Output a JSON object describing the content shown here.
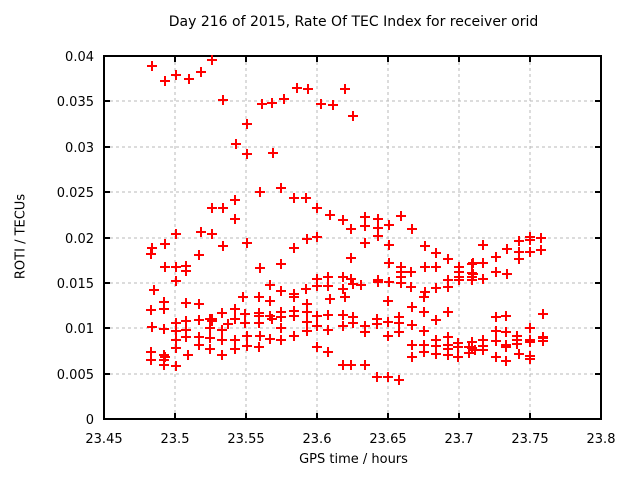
{
  "chart_data": {
    "type": "scatter",
    "title": "Day 216 of 2015, Rate Of TEC Index for receiver orid",
    "xlabel": "GPS time / hours",
    "ylabel": "ROTI / TECUs",
    "xlim": [
      23.45,
      23.8
    ],
    "ylim": [
      0,
      0.04
    ],
    "xticks": [
      23.45,
      23.5,
      23.55,
      23.6,
      23.65,
      23.7,
      23.75,
      23.8
    ],
    "xtick_labels": [
      "23.45",
      "23.5",
      "23.55",
      "23.6",
      "23.65",
      "23.7",
      "23.75",
      "23.8"
    ],
    "yticks": [
      0,
      0.005,
      0.01,
      0.015,
      0.02,
      0.025,
      0.03,
      0.035,
      0.04
    ],
    "ytick_labels": [
      "0",
      "0.005",
      "0.01",
      "0.015",
      "0.02",
      "0.025",
      "0.03",
      "0.035",
      "0.04"
    ],
    "grid": true,
    "legend_position": "none",
    "marker_shape": "plus",
    "marker_color": "#ff0000",
    "grid_color": "#b8b8b8",
    "border_color": "#000000",
    "series": [
      {
        "name": "ROTI",
        "points": [
          [
            23.484,
            0.0389
          ],
          [
            23.493,
            0.0373
          ],
          [
            23.501,
            0.0379
          ],
          [
            23.51,
            0.0375
          ],
          [
            23.518,
            0.0382
          ],
          [
            23.526,
            0.0396
          ],
          [
            23.534,
            0.0352
          ],
          [
            23.561,
            0.0347
          ],
          [
            23.568,
            0.0348
          ],
          [
            23.577,
            0.0353
          ],
          [
            23.586,
            0.0365
          ],
          [
            23.594,
            0.0364
          ],
          [
            23.603,
            0.0347
          ],
          [
            23.611,
            0.0346
          ],
          [
            23.62,
            0.0364
          ],
          [
            23.551,
            0.0325
          ],
          [
            23.543,
            0.0303
          ],
          [
            23.551,
            0.0292
          ],
          [
            23.569,
            0.0293
          ],
          [
            23.625,
            0.0334
          ],
          [
            23.526,
            0.0232
          ],
          [
            23.534,
            0.0232
          ],
          [
            23.501,
            0.0204
          ],
          [
            23.518,
            0.0206
          ],
          [
            23.526,
            0.0204
          ],
          [
            23.534,
            0.0191
          ],
          [
            23.484,
            0.0188
          ],
          [
            23.483,
            0.0182
          ],
          [
            23.493,
            0.0193
          ],
          [
            23.517,
            0.0181
          ],
          [
            23.493,
            0.0168
          ],
          [
            23.501,
            0.0168
          ],
          [
            23.508,
            0.0169
          ],
          [
            23.508,
            0.0163
          ],
          [
            23.501,
            0.0152
          ],
          [
            23.485,
            0.0142
          ],
          [
            23.542,
            0.0241
          ],
          [
            23.542,
            0.022
          ],
          [
            23.56,
            0.025
          ],
          [
            23.575,
            0.0254
          ],
          [
            23.584,
            0.0244
          ],
          [
            23.592,
            0.0244
          ],
          [
            23.6,
            0.0233
          ],
          [
            23.609,
            0.0225
          ],
          [
            23.618,
            0.0219
          ],
          [
            23.551,
            0.0194
          ],
          [
            23.584,
            0.0188
          ],
          [
            23.593,
            0.0198
          ],
          [
            23.6,
            0.0201
          ],
          [
            23.56,
            0.0166
          ],
          [
            23.575,
            0.0171
          ],
          [
            23.567,
            0.0148
          ],
          [
            23.575,
            0.0141
          ],
          [
            23.584,
            0.0138
          ],
          [
            23.592,
            0.0143
          ],
          [
            23.6,
            0.0154
          ],
          [
            23.6,
            0.0147
          ],
          [
            23.608,
            0.0157
          ],
          [
            23.608,
            0.0147
          ],
          [
            23.618,
            0.0157
          ],
          [
            23.618,
            0.0143
          ],
          [
            23.624,
            0.0209
          ],
          [
            23.624,
            0.0177
          ],
          [
            23.634,
            0.0223
          ],
          [
            23.634,
            0.0213
          ],
          [
            23.634,
            0.0194
          ],
          [
            23.643,
            0.022
          ],
          [
            23.643,
            0.021
          ],
          [
            23.643,
            0.0202
          ],
          [
            23.651,
            0.0214
          ],
          [
            23.651,
            0.0192
          ],
          [
            23.659,
            0.0224
          ],
          [
            23.667,
            0.0209
          ],
          [
            23.676,
            0.0191
          ],
          [
            23.684,
            0.0183
          ],
          [
            23.651,
            0.0172
          ],
          [
            23.659,
            0.0168
          ],
          [
            23.659,
            0.0162
          ],
          [
            23.659,
            0.0157
          ],
          [
            23.666,
            0.0162
          ],
          [
            23.676,
            0.0168
          ],
          [
            23.684,
            0.0168
          ],
          [
            23.692,
            0.0176
          ],
          [
            23.7,
            0.0168
          ],
          [
            23.7,
            0.0162
          ],
          [
            23.7,
            0.0157
          ],
          [
            23.709,
            0.0171
          ],
          [
            23.709,
            0.0161
          ],
          [
            23.709,
            0.0156
          ],
          [
            23.624,
            0.0154
          ],
          [
            23.625,
            0.0149
          ],
          [
            23.631,
            0.0148
          ],
          [
            23.643,
            0.0153
          ],
          [
            23.643,
            0.0151
          ],
          [
            23.651,
            0.0151
          ],
          [
            23.659,
            0.015
          ],
          [
            23.666,
            0.0146
          ],
          [
            23.676,
            0.014
          ],
          [
            23.684,
            0.0144
          ],
          [
            23.692,
            0.0153
          ],
          [
            23.692,
            0.0146
          ],
          [
            23.7,
            0.0153
          ],
          [
            23.709,
            0.0153
          ],
          [
            23.717,
            0.0192
          ],
          [
            23.734,
            0.0187
          ],
          [
            23.742,
            0.0196
          ],
          [
            23.742,
            0.0184
          ],
          [
            23.742,
            0.0176
          ],
          [
            23.75,
            0.0201
          ],
          [
            23.75,
            0.0197
          ],
          [
            23.75,
            0.0184
          ],
          [
            23.758,
            0.0199
          ],
          [
            23.758,
            0.0186
          ],
          [
            23.726,
            0.0179
          ],
          [
            23.71,
            0.0172
          ],
          [
            23.717,
            0.0172
          ],
          [
            23.726,
            0.0162
          ],
          [
            23.734,
            0.016
          ],
          [
            23.71,
            0.016
          ],
          [
            23.717,
            0.0154
          ],
          [
            23.483,
            0.012
          ],
          [
            23.492,
            0.0129
          ],
          [
            23.492,
            0.0121
          ],
          [
            23.508,
            0.0128
          ],
          [
            23.517,
            0.0127
          ],
          [
            23.526,
            0.011
          ],
          [
            23.526,
            0.0108
          ],
          [
            23.533,
            0.0117
          ],
          [
            23.484,
            0.0101
          ],
          [
            23.492,
            0.0099
          ],
          [
            23.501,
            0.0106
          ],
          [
            23.501,
            0.0097
          ],
          [
            23.501,
            0.0087
          ],
          [
            23.501,
            0.0078
          ],
          [
            23.508,
            0.0108
          ],
          [
            23.508,
            0.0098
          ],
          [
            23.508,
            0.009
          ],
          [
            23.517,
            0.0109
          ],
          [
            23.517,
            0.009
          ],
          [
            23.517,
            0.0081
          ],
          [
            23.525,
            0.011
          ],
          [
            23.525,
            0.01
          ],
          [
            23.525,
            0.0089
          ],
          [
            23.525,
            0.0077
          ],
          [
            23.533,
            0.0098
          ],
          [
            23.533,
            0.0087
          ],
          [
            23.533,
            0.0071
          ],
          [
            23.509,
            0.0071
          ],
          [
            23.483,
            0.0074
          ],
          [
            23.483,
            0.0065
          ],
          [
            23.492,
            0.007
          ],
          [
            23.493,
            0.0068
          ],
          [
            23.492,
            0.0065
          ],
          [
            23.492,
            0.0059
          ],
          [
            23.501,
            0.0058
          ],
          [
            23.548,
            0.0134
          ],
          [
            23.559,
            0.0134
          ],
          [
            23.567,
            0.013
          ],
          [
            23.584,
            0.0134
          ],
          [
            23.609,
            0.0132
          ],
          [
            23.62,
            0.0134
          ],
          [
            23.542,
            0.0121
          ],
          [
            23.542,
            0.011
          ],
          [
            23.549,
            0.0116
          ],
          [
            23.549,
            0.0106
          ],
          [
            23.559,
            0.0117
          ],
          [
            23.559,
            0.0113
          ],
          [
            23.559,
            0.0106
          ],
          [
            23.567,
            0.0113
          ],
          [
            23.568,
            0.011
          ],
          [
            23.575,
            0.0118
          ],
          [
            23.575,
            0.0112
          ],
          [
            23.575,
            0.01
          ],
          [
            23.584,
            0.0119
          ],
          [
            23.584,
            0.0113
          ],
          [
            23.593,
            0.0127
          ],
          [
            23.593,
            0.0118
          ],
          [
            23.593,
            0.0107
          ],
          [
            23.593,
            0.0097
          ],
          [
            23.6,
            0.0113
          ],
          [
            23.6,
            0.0102
          ],
          [
            23.608,
            0.0115
          ],
          [
            23.608,
            0.0098
          ],
          [
            23.618,
            0.0115
          ],
          [
            23.618,
            0.0102
          ],
          [
            23.542,
            0.0087
          ],
          [
            23.542,
            0.0077
          ],
          [
            23.551,
            0.0091
          ],
          [
            23.551,
            0.008
          ],
          [
            23.56,
            0.0091
          ],
          [
            23.559,
            0.0079
          ],
          [
            23.567,
            0.0088
          ],
          [
            23.575,
            0.0087
          ],
          [
            23.584,
            0.0092
          ],
          [
            23.6,
            0.0079
          ],
          [
            23.608,
            0.0074
          ],
          [
            23.618,
            0.0059
          ],
          [
            23.537,
            0.0105
          ],
          [
            23.625,
            0.0112
          ],
          [
            23.625,
            0.0106
          ],
          [
            23.634,
            0.0102
          ],
          [
            23.634,
            0.0096
          ],
          [
            23.642,
            0.011
          ],
          [
            23.642,
            0.0105
          ],
          [
            23.65,
            0.013
          ],
          [
            23.65,
            0.0107
          ],
          [
            23.65,
            0.0091
          ],
          [
            23.658,
            0.0112
          ],
          [
            23.658,
            0.0106
          ],
          [
            23.658,
            0.0096
          ],
          [
            23.667,
            0.0123
          ],
          [
            23.667,
            0.0104
          ],
          [
            23.675,
            0.0118
          ],
          [
            23.675,
            0.0097
          ],
          [
            23.684,
            0.0109
          ],
          [
            23.692,
            0.0118
          ],
          [
            23.675,
            0.0134
          ],
          [
            23.667,
            0.0081
          ],
          [
            23.667,
            0.0068
          ],
          [
            23.675,
            0.0082
          ],
          [
            23.675,
            0.0074
          ],
          [
            23.684,
            0.0087
          ],
          [
            23.684,
            0.008
          ],
          [
            23.684,
            0.0072
          ],
          [
            23.692,
            0.009
          ],
          [
            23.692,
            0.0082
          ],
          [
            23.692,
            0.0077
          ],
          [
            23.692,
            0.0071
          ],
          [
            23.699,
            0.0084
          ],
          [
            23.699,
            0.0079
          ],
          [
            23.699,
            0.0068
          ],
          [
            23.707,
            0.0079
          ],
          [
            23.707,
            0.0073
          ],
          [
            23.624,
            0.0059
          ],
          [
            23.634,
            0.0059
          ],
          [
            23.642,
            0.0046
          ],
          [
            23.65,
            0.0046
          ],
          [
            23.658,
            0.0043
          ],
          [
            23.709,
            0.0085
          ],
          [
            23.709,
            0.0078
          ],
          [
            23.711,
            0.0076
          ],
          [
            23.717,
            0.0087
          ],
          [
            23.717,
            0.008
          ],
          [
            23.717,
            0.0076
          ],
          [
            23.726,
            0.0112
          ],
          [
            23.726,
            0.0097
          ],
          [
            23.726,
            0.0086
          ],
          [
            23.726,
            0.0068
          ],
          [
            23.733,
            0.0114
          ],
          [
            23.733,
            0.0096
          ],
          [
            23.733,
            0.0081
          ],
          [
            23.733,
            0.0079
          ],
          [
            23.733,
            0.0064
          ],
          [
            23.741,
            0.0092
          ],
          [
            23.741,
            0.0087
          ],
          [
            23.741,
            0.0083
          ],
          [
            23.742,
            0.0072
          ],
          [
            23.75,
            0.01
          ],
          [
            23.75,
            0.0087
          ],
          [
            23.75,
            0.0085
          ],
          [
            23.75,
            0.0069
          ],
          [
            23.75,
            0.0066
          ],
          [
            23.759,
            0.0116
          ],
          [
            23.759,
            0.009
          ],
          [
            23.759,
            0.0089
          ],
          [
            23.759,
            0.0086
          ]
        ]
      }
    ]
  }
}
